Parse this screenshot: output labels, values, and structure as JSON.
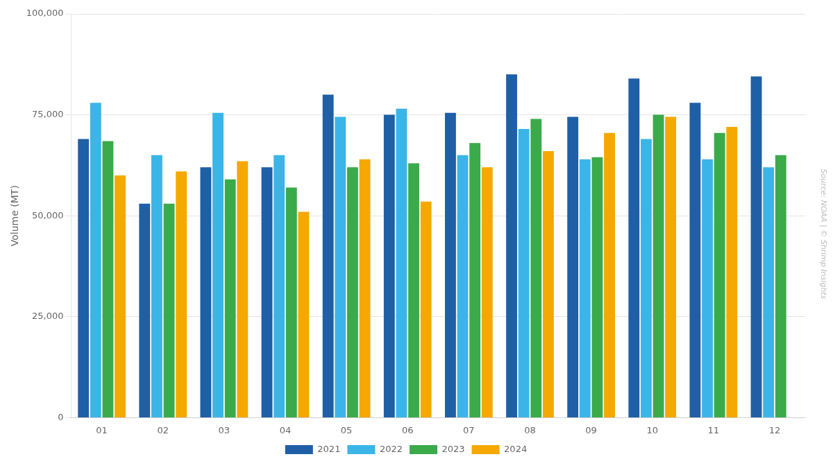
{
  "chart_data": {
    "type": "bar",
    "categories": [
      "01",
      "02",
      "03",
      "04",
      "05",
      "06",
      "07",
      "08",
      "09",
      "10",
      "11",
      "12"
    ],
    "series": [
      {
        "name": "2021",
        "color": "#1F5FA6",
        "values": [
          69000,
          53000,
          62000,
          62000,
          80000,
          75000,
          75500,
          85000,
          74500,
          84000,
          78000,
          84500
        ]
      },
      {
        "name": "2022",
        "color": "#3BB5E8",
        "values": [
          78000,
          65000,
          75500,
          65000,
          74500,
          76500,
          65000,
          71500,
          64000,
          69000,
          64000,
          62000
        ]
      },
      {
        "name": "2023",
        "color": "#3BAA4A",
        "values": [
          68500,
          53000,
          59000,
          57000,
          62000,
          63000,
          68000,
          74000,
          64500,
          75000,
          70500,
          65000
        ]
      },
      {
        "name": "2024",
        "color": "#F5A800",
        "values": [
          60000,
          61000,
          63500,
          51000,
          64000,
          53500,
          62000,
          66000,
          70500,
          74500,
          72000,
          null
        ]
      }
    ],
    "ylabel": "Volume (MT)",
    "ylim": [
      0,
      100000
    ],
    "yticks": [
      0,
      {
        "value": 25000,
        "label": "25,000"
      },
      {
        "value": 50000,
        "label": "50,000"
      },
      {
        "value": 75000,
        "label": "75,000"
      },
      {
        "value": 100000,
        "label": "100,000"
      }
    ],
    "grid": true,
    "legend": "bottom",
    "annotation": "Source: NOAA | © Shrimp Insights"
  }
}
